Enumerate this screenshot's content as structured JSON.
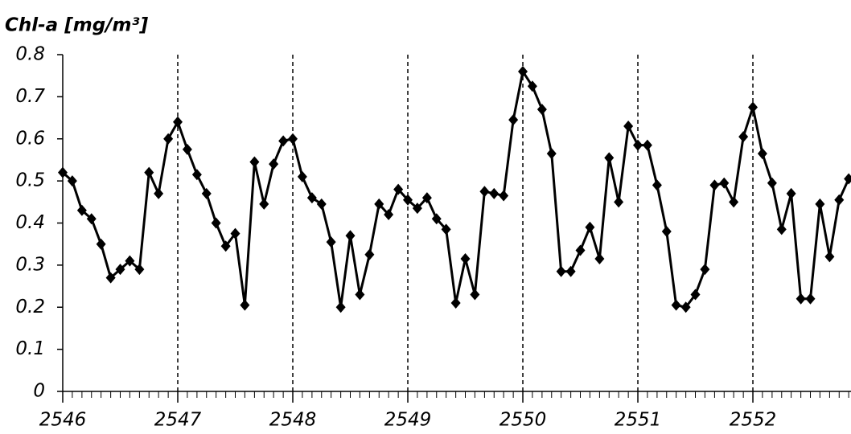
{
  "chart_data": {
    "type": "line",
    "title": "Chl-a [mg/m³]",
    "x": [
      2546,
      2546.083,
      2546.167,
      2546.25,
      2546.333,
      2546.417,
      2546.5,
      2546.583,
      2546.667,
      2546.75,
      2546.833,
      2546.917,
      2547,
      2547.083,
      2547.167,
      2547.25,
      2547.333,
      2547.417,
      2547.5,
      2547.583,
      2547.667,
      2547.75,
      2547.833,
      2547.917,
      2548,
      2548.083,
      2548.167,
      2548.25,
      2548.333,
      2548.417,
      2548.5,
      2548.583,
      2548.667,
      2548.75,
      2548.833,
      2548.917,
      2549,
      2549.083,
      2549.167,
      2549.25,
      2549.333,
      2549.417,
      2549.5,
      2549.583,
      2549.667,
      2549.75,
      2549.833,
      2549.917,
      2550,
      2550.083,
      2550.167,
      2550.25,
      2550.333,
      2550.417,
      2550.5,
      2550.583,
      2550.667,
      2550.75,
      2550.833,
      2550.917,
      2551,
      2551.083,
      2551.167,
      2551.25,
      2551.333,
      2551.417,
      2551.5,
      2551.583,
      2551.667,
      2551.75,
      2551.833,
      2551.917,
      2552,
      2552.083,
      2552.167,
      2552.25,
      2552.333,
      2552.417,
      2552.5,
      2552.583,
      2552.667,
      2552.75,
      2552.833
    ],
    "series": [
      {
        "color": "#000000",
        "values": [
          0.52,
          0.5,
          0.43,
          0.41,
          0.35,
          0.27,
          0.29,
          0.31,
          0.29,
          0.52,
          0.47,
          0.6,
          0.64,
          0.575,
          0.515,
          0.47,
          0.4,
          0.345,
          0.375,
          0.205,
          0.545,
          0.445,
          0.54,
          0.595,
          0.6,
          0.51,
          0.46,
          0.445,
          0.355,
          0.2,
          0.37,
          0.23,
          0.325,
          0.445,
          0.42,
          0.48,
          0.455,
          0.435,
          0.46,
          0.41,
          0.385,
          0.21,
          0.315,
          0.23,
          0.475,
          0.47,
          0.465,
          0.645,
          0.76,
          0.725,
          0.67,
          0.565,
          0.285,
          0.285,
          0.335,
          0.39,
          0.315,
          0.555,
          0.45,
          0.63,
          0.585,
          0.585,
          0.49,
          0.38,
          0.205,
          0.2,
          0.23,
          0.29,
          0.49,
          0.495,
          0.45,
          0.605,
          0.675,
          0.565,
          0.495,
          0.385,
          0.47,
          0.22,
          0.22,
          0.445,
          0.32,
          0.455,
          0.505
        ]
      }
    ],
    "xlim": [
      2546,
      2552.853
    ],
    "xticks": [
      2546,
      2547,
      2548,
      2549,
      2550,
      2551,
      2552
    ],
    "ylim": [
      0,
      0.8
    ],
    "yticks": [
      0,
      0.1,
      0.2,
      0.3,
      0.4,
      0.5,
      0.6,
      0.7,
      0.8
    ],
    "grid": true
  }
}
